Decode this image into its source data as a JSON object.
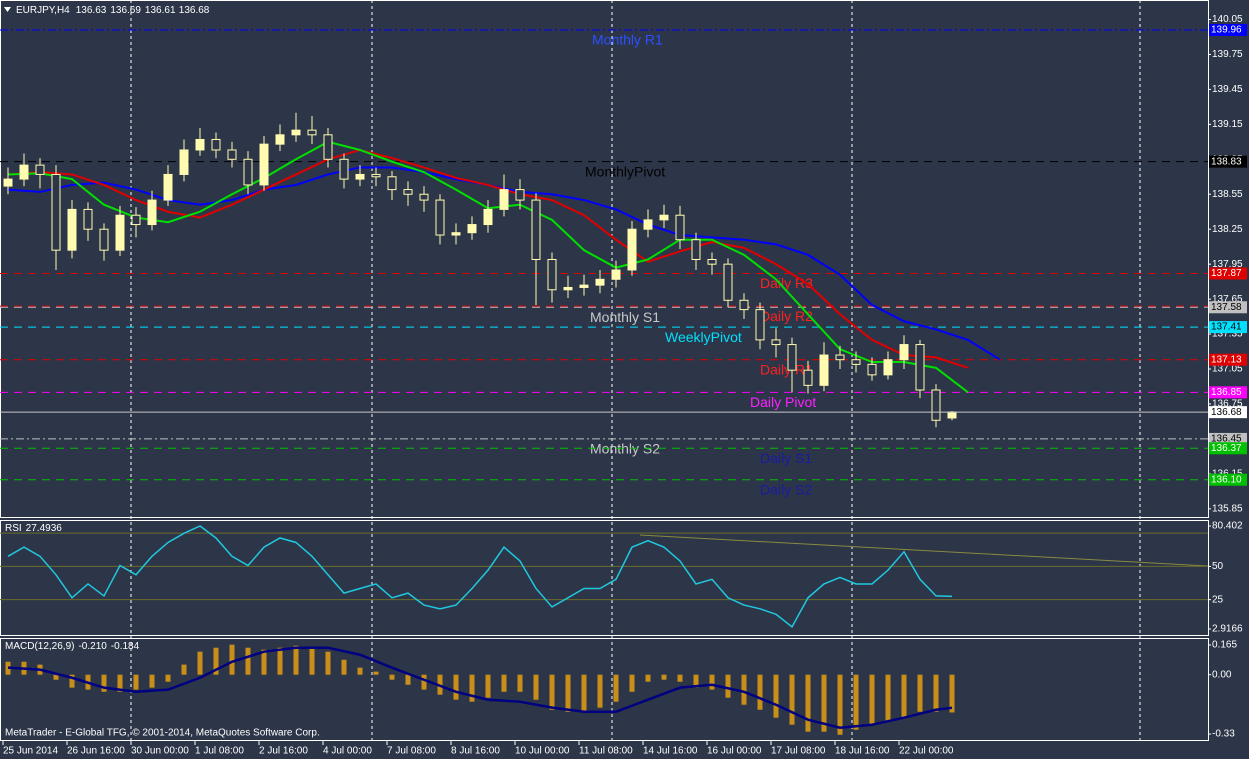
{
  "footer": "MetaTrader - E-Global TFG, © 2001-2014, MetaQuotes Software Corp.",
  "chart_data": [
    {
      "type": "candlestick",
      "title": "EURJPY,H4",
      "open": [
        138.62,
        138.68,
        138.8,
        138.72,
        138.07,
        138.42,
        138.25,
        138.07,
        138.37,
        138.29,
        138.5,
        138.72,
        138.93,
        139.02,
        138.93,
        138.85,
        138.63,
        138.98,
        139.06,
        139.1,
        139.06,
        138.85,
        138.68,
        138.72,
        138.7,
        138.59,
        138.55,
        138.5,
        138.2,
        138.22,
        138.29,
        138.42,
        138.59,
        138.5,
        137.99,
        137.73,
        137.75,
        137.77,
        137.82,
        137.9,
        138.25,
        138.33,
        138.37,
        138.16,
        137.99,
        137.95,
        137.64,
        137.56,
        137.3,
        137.26,
        137.04,
        136.91,
        137.17,
        137.13,
        137.09,
        137.0,
        137.13,
        137.26,
        136.87,
        136.63
      ],
      "high": [
        138.78,
        138.9,
        138.86,
        138.8,
        138.5,
        138.48,
        138.3,
        138.45,
        138.44,
        138.58,
        138.8,
        139.02,
        139.12,
        139.08,
        139.0,
        138.92,
        139.05,
        139.15,
        139.25,
        139.22,
        139.12,
        138.9,
        138.8,
        138.78,
        138.75,
        138.66,
        138.62,
        138.55,
        138.3,
        138.36,
        138.5,
        138.72,
        138.68,
        138.56,
        138.05,
        137.85,
        137.86,
        137.9,
        137.98,
        138.32,
        138.42,
        138.46,
        138.45,
        138.22,
        138.05,
        138.0,
        137.7,
        137.62,
        137.4,
        137.32,
        137.12,
        137.28,
        137.25,
        137.2,
        137.15,
        137.2,
        137.34,
        137.3,
        136.92,
        136.69
      ],
      "low": [
        138.55,
        138.62,
        138.6,
        137.9,
        138.0,
        138.15,
        137.98,
        138.02,
        138.18,
        138.24,
        138.45,
        138.66,
        138.88,
        138.86,
        138.78,
        138.55,
        138.58,
        138.92,
        139.0,
        138.98,
        138.78,
        138.6,
        138.62,
        138.62,
        138.5,
        138.45,
        138.4,
        138.12,
        138.12,
        138.16,
        138.22,
        138.36,
        138.42,
        137.6,
        137.62,
        137.66,
        137.68,
        137.7,
        137.75,
        137.85,
        138.18,
        138.26,
        138.08,
        137.9,
        137.86,
        137.58,
        137.48,
        137.22,
        137.15,
        136.85,
        136.84,
        136.86,
        137.05,
        137.02,
        136.95,
        136.96,
        137.05,
        136.8,
        136.55,
        136.61
      ],
      "close": [
        138.68,
        138.8,
        138.72,
        138.07,
        138.42,
        138.25,
        138.07,
        138.37,
        138.29,
        138.5,
        138.72,
        138.93,
        139.02,
        138.93,
        138.85,
        138.63,
        138.98,
        139.06,
        139.1,
        139.06,
        138.85,
        138.68,
        138.72,
        138.7,
        138.59,
        138.55,
        138.5,
        138.2,
        138.22,
        138.29,
        138.42,
        138.59,
        138.5,
        137.99,
        137.73,
        137.75,
        137.77,
        137.82,
        137.9,
        138.25,
        138.33,
        138.37,
        138.16,
        137.99,
        137.95,
        137.64,
        137.56,
        137.3,
        137.26,
        137.04,
        136.91,
        137.17,
        137.13,
        137.09,
        137.0,
        137.13,
        137.26,
        136.87,
        136.61,
        136.68
      ],
      "color": "#fffbb0",
      "current_price_color": "#c8c8c8",
      "ylim": [
        135.78,
        140.2
      ],
      "yticks": [
        140.05,
        139.75,
        139.45,
        139.15,
        138.85,
        138.55,
        138.25,
        137.95,
        137.65,
        137.35,
        137.05,
        136.75,
        136.45,
        136.15,
        135.85
      ],
      "series": [
        {
          "color": "#0000ff",
          "x": [
            0,
            2,
            4,
            6,
            8,
            10,
            12,
            14,
            16,
            18,
            20,
            22,
            24,
            26,
            28,
            30,
            32,
            34,
            36,
            38,
            40,
            42,
            44,
            46,
            48,
            50,
            52,
            54,
            56,
            58,
            60,
            62
          ],
          "values": [
            138.59,
            138.57,
            138.63,
            138.65,
            138.59,
            138.5,
            138.46,
            138.5,
            138.59,
            138.63,
            138.72,
            138.78,
            138.78,
            138.74,
            138.68,
            138.63,
            138.57,
            138.55,
            138.5,
            138.42,
            138.29,
            138.2,
            138.18,
            138.16,
            138.12,
            138.03,
            137.86,
            137.6,
            137.46,
            137.39,
            137.3,
            137.13
          ]
        },
        {
          "color": "#e00000",
          "x": [
            0,
            2,
            4,
            6,
            8,
            10,
            12,
            14,
            16,
            18,
            20,
            22,
            24,
            26,
            28,
            30,
            32,
            34,
            36,
            38,
            40,
            42,
            44,
            46,
            48,
            50,
            52,
            54,
            56,
            58,
            60
          ],
          "values": [
            138.72,
            138.74,
            138.72,
            138.63,
            138.5,
            138.4,
            138.35,
            138.46,
            138.59,
            138.72,
            138.85,
            138.93,
            138.86,
            138.78,
            138.69,
            138.63,
            138.55,
            138.5,
            138.37,
            138.16,
            137.97,
            138.06,
            138.14,
            138.09,
            137.95,
            137.78,
            137.52,
            137.3,
            137.17,
            137.15,
            137.06
          ]
        },
        {
          "color": "#00e000",
          "x": [
            0,
            2,
            4,
            6,
            8,
            10,
            12,
            14,
            16,
            18,
            20,
            22,
            24,
            26,
            28,
            30,
            32,
            34,
            36,
            38,
            40,
            42,
            44,
            46,
            48,
            50,
            52,
            54,
            56,
            58,
            60
          ],
          "values": [
            138.72,
            138.73,
            138.68,
            138.46,
            138.35,
            138.31,
            138.4,
            138.55,
            138.69,
            138.85,
            139.0,
            138.93,
            138.83,
            138.74,
            138.59,
            138.43,
            138.46,
            138.33,
            138.07,
            137.92,
            137.99,
            138.16,
            138.16,
            138.03,
            137.82,
            137.52,
            137.22,
            137.11,
            137.11,
            137.06,
            136.85
          ]
        }
      ],
      "levels": [
        {
          "name": "Monthly R1",
          "value": 139.96,
          "label": "139.96",
          "color": "#0000ff",
          "text_color": "#2a50ff",
          "style": "dashdot"
        },
        {
          "name": "MonthlyPivot",
          "value": 138.83,
          "label": "138.83",
          "color": "#000000",
          "text_color": "#000000",
          "style": "dashed"
        },
        {
          "name": "Daily R3",
          "value": 137.87,
          "label": "137.87",
          "color": "#e00000",
          "text_color": "#ff2020",
          "style": "dashed"
        },
        {
          "name": "Daily R2",
          "value": 137.59,
          "color": "#e00000",
          "text_color": "#ff2020",
          "style": "dashed"
        },
        {
          "name": "Monthly S1",
          "value": 137.58,
          "label": "137.58",
          "color": "#c0c0c0",
          "text_color": "#c8c8c8",
          "style": "dashed"
        },
        {
          "name": "WeeklyPivot",
          "value": 137.41,
          "label": "137.41",
          "color": "#00e0ff",
          "text_color": "#00e0ff",
          "style": "dashed"
        },
        {
          "name": "Daily R1",
          "value": 137.13,
          "label": "137.13",
          "color": "#e00000",
          "text_color": "#ff2020",
          "style": "dashed"
        },
        {
          "name": "Daily Pivot",
          "value": 136.85,
          "label": "136.85",
          "color": "#ff00ff",
          "text_color": "#ff20ff",
          "style": "dashed"
        },
        {
          "name": "Monthly S2",
          "value": 136.45,
          "label": "136.45",
          "color": "#c0c0c0",
          "text_color": "#c8c8c8",
          "style": "dashdot"
        },
        {
          "name": "Daily S1",
          "value": 136.37,
          "label": "136.37",
          "color": "#00c000",
          "text_color": "#1a1aa0",
          "style": "dashed"
        },
        {
          "name": "Daily S2",
          "value": 136.1,
          "label": "136.10",
          "color": "#00c000",
          "text_color": "#1a1aa0",
          "style": "dashed"
        }
      ]
    },
    {
      "type": "line",
      "title": "RSI",
      "color": "#20c8e0",
      "values": [
        57.6,
        64.5,
        57.6,
        43.7,
        26.4,
        36.8,
        27.8,
        50.7,
        43.7,
        57.6,
        68.0,
        74.9,
        80.402,
        71.4,
        57.6,
        50.7,
        64.5,
        71.4,
        68.0,
        57.6,
        43.7,
        29.9,
        33.4,
        36.8,
        26.4,
        29.9,
        20.9,
        18.1,
        20.9,
        33.4,
        47.2,
        64.5,
        54.1,
        33.4,
        19.5,
        26.4,
        33.4,
        33.4,
        40.3,
        64.5,
        69.4,
        64.5,
        54.1,
        36.8,
        40.3,
        26.4,
        20.9,
        18.1,
        14.0,
        4.5,
        26.4,
        36.8,
        41.7,
        36.8,
        36.8,
        47.2,
        61.0,
        40.3,
        27.8,
        27.4936
      ],
      "ylim": [
        2.9166,
        80.402
      ],
      "yticks": [
        80.402,
        50,
        25,
        2.9166
      ],
      "levels": [
        75,
        50,
        25
      ],
      "level_color": "#6b6b2a"
    },
    {
      "type": "bar",
      "title": "MACD(12,26,9)",
      "categories": [
        "25 Jun 2014",
        null,
        null,
        null,
        "26 Jun 16:00",
        null,
        null,
        null,
        "30 Jun 00:00",
        null,
        null,
        null,
        "1 Jul 08:00",
        null,
        null,
        null,
        "2 Jul 16:00",
        null,
        null,
        null,
        "4 Jul 00:00",
        null,
        null,
        null,
        "7 Jul 08:00",
        null,
        null,
        null,
        "8 Jul 16:00",
        null,
        null,
        null,
        "10 Jul 00:00",
        null,
        null,
        null,
        "11 Jul 08:00",
        null,
        null,
        null,
        "14 Jul 16:00",
        null,
        null,
        null,
        "16 Jul 00:00",
        null,
        null,
        null,
        "17 Jul 08:00",
        null,
        null,
        null,
        "18 Jul 16:00",
        null,
        null,
        null,
        "22 Jul 00:00",
        null,
        null,
        null
      ],
      "series": [
        {
          "type": "bar",
          "color": "#c8901a",
          "values": [
            0.072,
            0.072,
            0.056,
            -0.028,
            -0.072,
            -0.083,
            -0.095,
            -0.095,
            -0.083,
            -0.072,
            -0.039,
            0.056,
            0.128,
            0.15,
            0.167,
            0.15,
            0.139,
            0.15,
            0.161,
            0.15,
            0.128,
            0.083,
            0.039,
            0.017,
            -0.028,
            -0.056,
            -0.083,
            -0.111,
            -0.139,
            -0.15,
            -0.128,
            -0.095,
            -0.095,
            -0.139,
            -0.195,
            -0.206,
            -0.206,
            -0.183,
            -0.15,
            -0.095,
            -0.039,
            -0.028,
            -0.039,
            -0.072,
            -0.083,
            -0.128,
            -0.167,
            -0.195,
            -0.239,
            -0.278,
            -0.317,
            -0.317,
            -0.334,
            -0.306,
            -0.278,
            -0.261,
            -0.239,
            -0.206,
            -0.206,
            -0.21
          ],
          "value_labels": [
            null,
            null,
            null,
            null,
            null,
            null,
            null,
            null,
            null,
            null,
            null,
            null,
            null,
            null,
            null,
            null,
            null,
            null,
            null,
            null,
            null,
            null,
            null,
            null,
            null,
            null,
            null,
            null,
            null,
            null,
            null,
            null,
            null,
            null,
            null,
            null,
            null,
            null,
            null,
            null,
            null,
            null,
            null,
            null,
            null,
            null,
            null,
            null,
            null,
            null,
            null,
            null,
            null,
            null,
            null,
            null,
            null,
            null,
            null,
            "-0.210"
          ]
        },
        {
          "type": "line",
          "color": "#000080",
          "x": [
            0,
            2,
            4,
            6,
            8,
            10,
            12,
            14,
            16,
            18,
            20,
            22,
            24,
            26,
            28,
            30,
            32,
            34,
            36,
            38,
            40,
            42,
            44,
            46,
            48,
            50,
            52,
            54,
            56,
            58,
            59
          ],
          "values": [
            0.039,
            0.028,
            -0.017,
            -0.072,
            -0.095,
            -0.083,
            -0.017,
            0.072,
            0.128,
            0.15,
            0.15,
            0.111,
            0.039,
            -0.028,
            -0.095,
            -0.139,
            -0.15,
            -0.183,
            -0.206,
            -0.206,
            -0.139,
            -0.072,
            -0.056,
            -0.095,
            -0.167,
            -0.25,
            -0.295,
            -0.278,
            -0.239,
            -0.195,
            -0.184
          ]
        }
      ],
      "ylim": [
        -0.363,
        0.204
      ],
      "yticks": [
        0.165,
        {
          "value": 0,
          "label": "0.00"
        },
        -0.33
      ]
    }
  ]
}
